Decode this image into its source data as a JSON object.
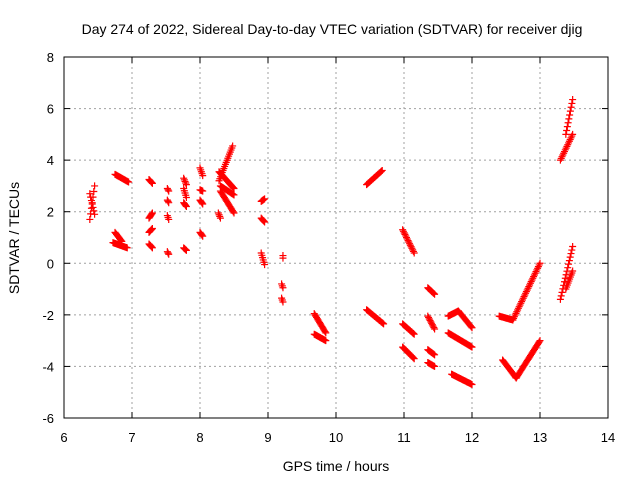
{
  "chart_data": {
    "type": "scatter",
    "title": "Day 274 of 2022, Sidereal Day-to-day VTEC variation (SDTVAR) for receiver djig",
    "xlabel": "GPS time / hours",
    "ylabel": "SDTVAR / TECUs",
    "xlim": [
      6,
      14
    ],
    "ylim": [
      -6,
      8
    ],
    "xticks": [
      "6",
      "7",
      "8",
      "9",
      "10",
      "11",
      "12",
      "13",
      "14"
    ],
    "yticks": [
      "-6",
      "-4",
      "-2",
      "0",
      "2",
      "4",
      "6",
      "8"
    ],
    "grid": true,
    "marker": "plus",
    "color": "#ff0000",
    "segments": [
      {
        "x0": 6.38,
        "y0": 1.7,
        "x1": 6.45,
        "y1": 3.0
      },
      {
        "x0": 6.38,
        "y0": 2.7,
        "x1": 6.45,
        "y1": 1.9
      },
      {
        "x0": 6.75,
        "y0": 3.45,
        "x1": 6.95,
        "y1": 3.15
      },
      {
        "x0": 6.75,
        "y0": 1.2,
        "x1": 6.85,
        "y1": 0.85
      },
      {
        "x0": 6.72,
        "y0": 0.8,
        "x1": 6.93,
        "y1": 0.6
      },
      {
        "x0": 7.25,
        "y0": 3.25,
        "x1": 7.3,
        "y1": 3.1
      },
      {
        "x0": 7.25,
        "y0": 1.75,
        "x1": 7.3,
        "y1": 1.95
      },
      {
        "x0": 7.25,
        "y0": 1.2,
        "x1": 7.3,
        "y1": 1.35
      },
      {
        "x0": 7.25,
        "y0": 0.75,
        "x1": 7.3,
        "y1": 0.6
      },
      {
        "x0": 7.52,
        "y0": 2.9,
        "x1": 7.54,
        "y1": 2.8
      },
      {
        "x0": 7.52,
        "y0": 2.45,
        "x1": 7.54,
        "y1": 2.35
      },
      {
        "x0": 7.52,
        "y0": 1.85,
        "x1": 7.54,
        "y1": 1.7
      },
      {
        "x0": 7.52,
        "y0": 0.45,
        "x1": 7.54,
        "y1": 0.35
      },
      {
        "x0": 7.76,
        "y0": 3.3,
        "x1": 7.8,
        "y1": 3.05
      },
      {
        "x0": 7.76,
        "y0": 2.9,
        "x1": 7.8,
        "y1": 2.55
      },
      {
        "x0": 7.76,
        "y0": 2.35,
        "x1": 7.8,
        "y1": 2.2
      },
      {
        "x0": 7.76,
        "y0": 0.6,
        "x1": 7.8,
        "y1": 0.5
      },
      {
        "x0": 8.0,
        "y0": 3.7,
        "x1": 8.04,
        "y1": 3.4
      },
      {
        "x0": 8.0,
        "y0": 2.85,
        "x1": 8.04,
        "y1": 2.8
      },
      {
        "x0": 8.0,
        "y0": 2.45,
        "x1": 8.04,
        "y1": 2.3
      },
      {
        "x0": 8.0,
        "y0": 1.2,
        "x1": 8.04,
        "y1": 1.05
      },
      {
        "x0": 8.28,
        "y0": 3.2,
        "x1": 8.48,
        "y1": 4.55
      },
      {
        "x0": 8.28,
        "y0": 3.55,
        "x1": 8.5,
        "y1": 2.9
      },
      {
        "x0": 8.3,
        "y0": 3.0,
        "x1": 8.5,
        "y1": 2.65
      },
      {
        "x0": 8.3,
        "y0": 2.8,
        "x1": 8.5,
        "y1": 1.95
      },
      {
        "x0": 8.27,
        "y0": 1.95,
        "x1": 8.3,
        "y1": 1.75
      },
      {
        "x0": 8.9,
        "y0": 2.4,
        "x1": 8.95,
        "y1": 2.5
      },
      {
        "x0": 8.9,
        "y0": 1.75,
        "x1": 8.95,
        "y1": 1.6
      },
      {
        "x0": 8.9,
        "y0": 0.4,
        "x1": 8.95,
        "y1": -0.05
      },
      {
        "x0": 9.22,
        "y0": 0.3,
        "x1": 9.22,
        "y1": 0.2
      },
      {
        "x0": 9.2,
        "y0": -0.8,
        "x1": 9.22,
        "y1": -0.95
      },
      {
        "x0": 9.2,
        "y0": -1.35,
        "x1": 9.22,
        "y1": -1.5
      },
      {
        "x0": 9.68,
        "y0": -1.95,
        "x1": 9.85,
        "y1": -2.7
      },
      {
        "x0": 9.68,
        "y0": -2.75,
        "x1": 9.85,
        "y1": -3.0
      },
      {
        "x0": 10.45,
        "y0": 3.05,
        "x1": 10.68,
        "y1": 3.6
      },
      {
        "x0": 10.45,
        "y0": -1.8,
        "x1": 10.7,
        "y1": -2.35
      },
      {
        "x0": 10.98,
        "y0": 1.3,
        "x1": 11.15,
        "y1": 0.4
      },
      {
        "x0": 10.98,
        "y0": -2.35,
        "x1": 11.15,
        "y1": -2.75
      },
      {
        "x0": 10.98,
        "y0": -3.25,
        "x1": 11.15,
        "y1": -3.7
      },
      {
        "x0": 11.35,
        "y0": -0.95,
        "x1": 11.45,
        "y1": -1.2
      },
      {
        "x0": 11.35,
        "y0": -2.05,
        "x1": 11.45,
        "y1": -2.55
      },
      {
        "x0": 11.35,
        "y0": -3.35,
        "x1": 11.45,
        "y1": -3.55
      },
      {
        "x0": 11.35,
        "y0": -3.85,
        "x1": 11.45,
        "y1": -4.0
      },
      {
        "x0": 11.65,
        "y0": -2.05,
        "x1": 11.8,
        "y1": -1.85
      },
      {
        "x0": 11.8,
        "y0": -1.85,
        "x1": 12.0,
        "y1": -2.5
      },
      {
        "x0": 11.65,
        "y0": -2.7,
        "x1": 12.0,
        "y1": -3.25
      },
      {
        "x0": 11.7,
        "y0": -4.3,
        "x1": 12.0,
        "y1": -4.7
      },
      {
        "x0": 12.4,
        "y0": -2.05,
        "x1": 12.6,
        "y1": -2.2
      },
      {
        "x0": 12.6,
        "y0": -2.2,
        "x1": 13.0,
        "y1": 0.0
      },
      {
        "x0": 12.45,
        "y0": -3.75,
        "x1": 12.65,
        "y1": -4.45
      },
      {
        "x0": 12.65,
        "y0": -4.45,
        "x1": 13.0,
        "y1": -3.0
      },
      {
        "x0": 13.3,
        "y0": 4.0,
        "x1": 13.48,
        "y1": 5.0
      },
      {
        "x0": 13.38,
        "y0": 5.0,
        "x1": 13.48,
        "y1": 6.35
      },
      {
        "x0": 13.3,
        "y0": -1.4,
        "x1": 13.48,
        "y1": 0.65
      },
      {
        "x0": 13.38,
        "y0": -1.0,
        "x1": 13.48,
        "y1": -0.3
      }
    ]
  }
}
